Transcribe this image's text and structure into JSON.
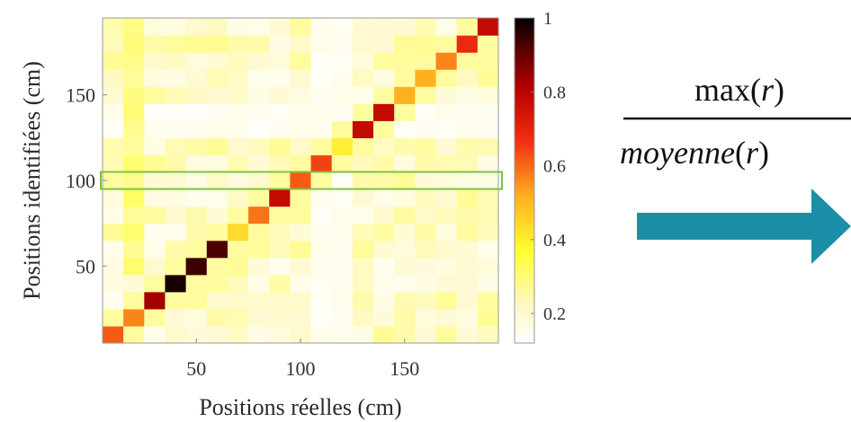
{
  "chart_data": {
    "type": "heatmap",
    "xlabel": "Positions réelles (cm)",
    "ylabel": "Positions identifiées (cm)",
    "x_ticks": [
      50,
      100,
      150
    ],
    "y_ticks": [
      50,
      100,
      150
    ],
    "xlim": [
      5,
      195
    ],
    "ylim": [
      5,
      195
    ],
    "cell_size": 10,
    "cell_centers": [
      10,
      20,
      30,
      40,
      50,
      60,
      70,
      80,
      90,
      100,
      110,
      120,
      130,
      140,
      150,
      160,
      170,
      180,
      190
    ],
    "colorbar": {
      "ticks": [
        0.2,
        0.4,
        0.6,
        0.8,
        1
      ],
      "tick_labels": [
        "0.2",
        "0.4",
        "0.6",
        "0.8",
        "1"
      ],
      "range": [
        0.12,
        1
      ],
      "colormap": "hot (reversed)"
    },
    "diagonal_values": [
      0.55,
      0.5,
      0.78,
      0.97,
      0.92,
      0.9,
      0.38,
      0.52,
      0.72,
      0.55,
      0.58,
      0.35,
      0.72,
      0.72,
      0.45,
      0.45,
      0.5,
      0.62,
      0.72
    ],
    "off_diagonal_level": 0.2,
    "highlighted_row_y": 100,
    "highlight_color": "#7fc241"
  },
  "formula": {
    "numerator_func": "max",
    "numerator_open": "(",
    "numerator_var": "r",
    "numerator_close": ")",
    "denominator_func": "moyenne",
    "denominator_open": "(",
    "denominator_var": "r",
    "denominator_close": ")"
  },
  "arrow": {
    "color": "#1b8fa8",
    "direction": "right"
  }
}
